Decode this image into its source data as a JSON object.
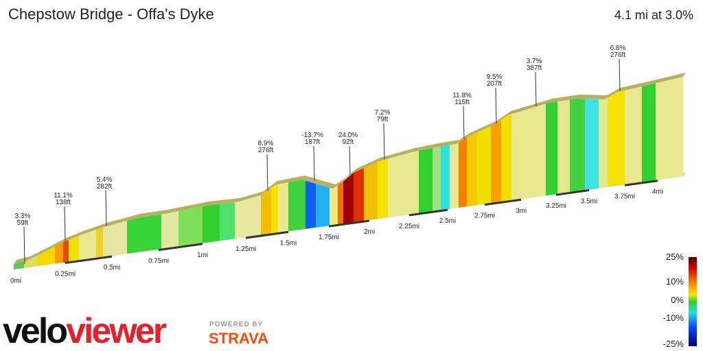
{
  "header": {
    "title": "Chepstow Bridge - Offa's Dyke",
    "summary": "4.1 mi at 3.0%"
  },
  "annotations": [
    {
      "grade": "3.3%",
      "length": "59ft"
    },
    {
      "grade": "11.1%",
      "length": "138ft"
    },
    {
      "grade": "5.4%",
      "length": "282ft"
    },
    {
      "grade": "8.9%",
      "length": "276ft"
    },
    {
      "grade": "-13.7%",
      "length": "187ft"
    },
    {
      "grade": "24.0%",
      "length": "92ft"
    },
    {
      "grade": "7.2%",
      "length": "79ft"
    },
    {
      "grade": "11.8%",
      "length": "115ft"
    },
    {
      "grade": "9.5%",
      "length": "207ft"
    },
    {
      "grade": "3.7%",
      "length": "387ft"
    },
    {
      "grade": "6.8%",
      "length": "276ft"
    }
  ],
  "distance_labels": [
    "0mi",
    "0.25mi",
    "0.5mi",
    "0.75mi",
    "1mi",
    "1.25mi",
    "1.5mi",
    "1.75mi",
    "2mi",
    "2.25mi",
    "2.5mi",
    "2.75mi",
    "3mi",
    "3.25mi",
    "3.5mi",
    "3.75mi",
    "4mi"
  ],
  "legend": {
    "labels": [
      "25%",
      "10%",
      "0%",
      "-10%",
      "-25%"
    ]
  },
  "branding": {
    "logo_left": "velo",
    "logo_right": "viewer",
    "powered_by": "POWERED BY",
    "partner": "STRAVA"
  }
}
